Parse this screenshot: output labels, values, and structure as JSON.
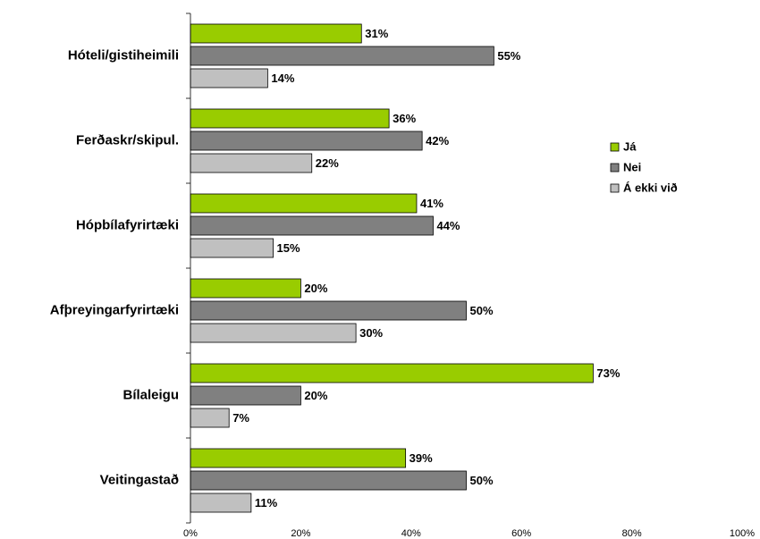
{
  "chart_data": {
    "type": "hbar",
    "categories": [
      "Hóteli/gistiheimili",
      "Ferðaskr/skipul.",
      "Hópbílafyrirtæki",
      "Afþreyingarfyrirtæki",
      "Bílaleigu",
      "Veitingastað"
    ],
    "series": [
      {
        "name": "Já",
        "color": "#99cc00",
        "values": [
          31,
          36,
          41,
          20,
          73,
          39
        ],
        "value_labels": [
          "31%",
          "36%",
          "41%",
          "20%",
          "73%",
          "39%"
        ]
      },
      {
        "name": "Nei",
        "color": "#808080",
        "values": [
          55,
          42,
          44,
          50,
          20,
          50
        ],
        "value_labels": [
          "55%",
          "42%",
          "44%",
          "50%",
          "20%",
          "50%"
        ]
      },
      {
        "name": "Á ekki við",
        "color": "#c0c0c0",
        "values": [
          14,
          22,
          15,
          30,
          7,
          11
        ],
        "value_labels": [
          "14%",
          "22%",
          "15%",
          "30%",
          "7%",
          "11%"
        ]
      }
    ],
    "xlim": [
      0,
      100
    ],
    "xticks": [
      {
        "value": 0,
        "label": "0%"
      },
      {
        "value": 20,
        "label": "20%"
      },
      {
        "value": 40,
        "label": "40%"
      },
      {
        "value": 60,
        "label": "60%"
      },
      {
        "value": 80,
        "label": "80%"
      },
      {
        "value": 100,
        "label": "100%"
      }
    ],
    "legend": "right"
  }
}
